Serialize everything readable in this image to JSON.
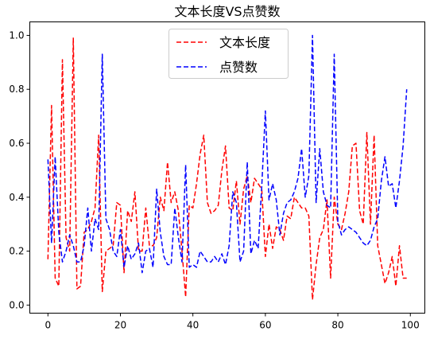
{
  "chart_data": {
    "type": "line",
    "title": "文本长度VS点赞数",
    "xlabel": "",
    "ylabel": "",
    "xlim": [
      -5,
      104
    ],
    "ylim": [
      -0.03,
      1.05
    ],
    "x_ticks": [
      0,
      20,
      40,
      60,
      80,
      100
    ],
    "y_ticks": [
      0.0,
      0.2,
      0.4,
      0.6,
      0.8,
      1.0
    ],
    "x_tick_labels": [
      "0",
      "20",
      "40",
      "60",
      "80",
      "100"
    ],
    "y_tick_labels": [
      "0.0",
      "0.2",
      "0.4",
      "0.6",
      "0.8",
      "1.0"
    ],
    "grid": false,
    "legend_position": "top-center",
    "x": [
      0,
      1,
      2,
      3,
      4,
      5,
      6,
      7,
      8,
      9,
      10,
      11,
      12,
      13,
      14,
      15,
      16,
      17,
      18,
      19,
      20,
      21,
      22,
      23,
      24,
      25,
      26,
      27,
      28,
      29,
      30,
      31,
      32,
      33,
      34,
      35,
      36,
      37,
      38,
      39,
      40,
      41,
      42,
      43,
      44,
      45,
      46,
      47,
      48,
      49,
      50,
      51,
      52,
      53,
      54,
      55,
      56,
      57,
      58,
      59,
      60,
      61,
      62,
      63,
      64,
      65,
      66,
      67,
      68,
      69,
      70,
      71,
      72,
      73,
      74,
      75,
      76,
      77,
      78,
      79,
      80,
      81,
      82,
      83,
      84,
      85,
      86,
      87,
      88,
      89,
      90,
      91,
      92,
      93,
      94,
      95,
      96,
      97,
      98,
      99
    ],
    "series": [
      {
        "name": "文本长度",
        "color": "#ff0000",
        "linestyle": "dashed",
        "values": [
          0.17,
          0.74,
          0.1,
          0.07,
          0.91,
          0.25,
          0.2,
          0.99,
          0.06,
          0.07,
          0.27,
          0.28,
          0.31,
          0.36,
          0.63,
          0.05,
          0.2,
          0.21,
          0.22,
          0.38,
          0.37,
          0.12,
          0.35,
          0.31,
          0.42,
          0.2,
          0.2,
          0.36,
          0.22,
          0.22,
          0.25,
          0.4,
          0.35,
          0.53,
          0.38,
          0.42,
          0.35,
          0.2,
          0.03,
          0.37,
          0.36,
          0.45,
          0.56,
          0.63,
          0.38,
          0.34,
          0.35,
          0.37,
          0.5,
          0.59,
          0.36,
          0.35,
          0.46,
          0.3,
          0.43,
          0.48,
          0.38,
          0.47,
          0.45,
          0.43,
          0.18,
          0.3,
          0.21,
          0.29,
          0.28,
          0.24,
          0.33,
          0.32,
          0.4,
          0.38,
          0.36,
          0.36,
          0.33,
          0.02,
          0.15,
          0.25,
          0.28,
          0.39,
          0.1,
          0.4,
          0.3,
          0.28,
          0.34,
          0.42,
          0.59,
          0.6,
          0.35,
          0.3,
          0.64,
          0.3,
          0.63,
          0.22,
          0.15,
          0.08,
          0.12,
          0.18,
          0.07,
          0.22,
          0.1,
          0.1
        ]
      },
      {
        "name": "点赞数",
        "color": "#0000ff",
        "linestyle": "dashed",
        "values": [
          0.54,
          0.23,
          0.55,
          0.27,
          0.16,
          0.2,
          0.26,
          0.22,
          0.16,
          0.16,
          0.22,
          0.36,
          0.2,
          0.32,
          0.28,
          0.93,
          0.32,
          0.28,
          0.2,
          0.18,
          0.28,
          0.14,
          0.22,
          0.17,
          0.19,
          0.23,
          0.12,
          0.2,
          0.21,
          0.14,
          0.43,
          0.27,
          0.18,
          0.15,
          0.15,
          0.36,
          0.25,
          0.16,
          0.52,
          0.14,
          0.15,
          0.14,
          0.2,
          0.18,
          0.16,
          0.16,
          0.18,
          0.16,
          0.19,
          0.15,
          0.22,
          0.42,
          0.38,
          0.16,
          0.2,
          0.53,
          0.19,
          0.24,
          0.21,
          0.44,
          0.72,
          0.39,
          0.45,
          0.39,
          0.26,
          0.34,
          0.38,
          0.39,
          0.42,
          0.47,
          0.58,
          0.4,
          0.48,
          1.0,
          0.38,
          0.58,
          0.42,
          0.37,
          0.36,
          0.93,
          0.31,
          0.26,
          0.28,
          0.29,
          0.28,
          0.27,
          0.25,
          0.23,
          0.22,
          0.24,
          0.29,
          0.32,
          0.46,
          0.55,
          0.44,
          0.45,
          0.36,
          0.46,
          0.59,
          0.8
        ]
      }
    ]
  }
}
